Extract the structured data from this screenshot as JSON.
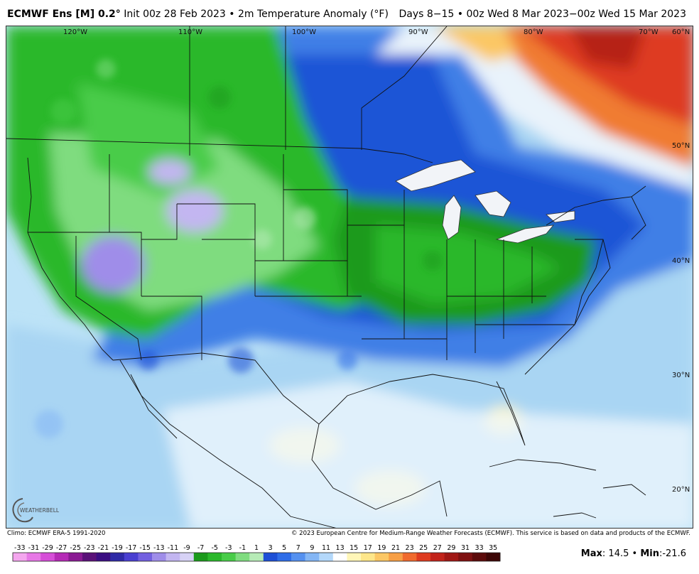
{
  "header": {
    "model": "ECMWF Ens [M] 0.2",
    "degree": "°",
    "init": " Init 00z 28 Feb 2023 • 2m Temperature Anomaly (°F)",
    "valid": "Days 8−15 • 00z Wed 8 Mar 2023−00z Wed 15 Mar 2023"
  },
  "map": {
    "longitude_labels": [
      "120°W",
      "110°W",
      "100°W",
      "90°W",
      "80°W",
      "70°W",
      "60°N"
    ],
    "latitude_labels": [
      "50°N",
      "40°N",
      "30°N",
      "20°N"
    ]
  },
  "logo": {
    "text": "WEATHERBELL"
  },
  "footer": {
    "climo": "Climo: ECMWF ERA-5 1991-2020",
    "copyright": "© 2023 European Centre for Medium-Range Weather Forecasts (ECMWF). This service is based on data and products of the ECMWF."
  },
  "colorbar": {
    "ticks": [
      "-33",
      "-31",
      "-29",
      "-27",
      "-25",
      "-23",
      "-21",
      "-19",
      "-17",
      "-15",
      "-13",
      "-11",
      "-9",
      "-7",
      "-5",
      "-3",
      "-1",
      "1",
      "3",
      "5",
      "7",
      "9",
      "11",
      "13",
      "15",
      "17",
      "19",
      "21",
      "23",
      "25",
      "27",
      "29",
      "31",
      "33",
      "35"
    ],
    "colors": [
      "#f4a6ee",
      "#e778e6",
      "#d64ed8",
      "#b52ab6",
      "#8a1a93",
      "#5a1178",
      "#3b0e82",
      "#2f2aa6",
      "#4a3fd1",
      "#7360e0",
      "#9f8de9",
      "#c3b6f1",
      "#d7d2f5",
      "#1b9a1b",
      "#2bb82b",
      "#48cc48",
      "#7fdc7f",
      "#b7ebb7",
      "#1d4fd6",
      "#2f6de8",
      "#5591f0",
      "#84b6f5",
      "#b4d8fa",
      "#ffffff",
      "#fff6b8",
      "#fde68a",
      "#fbc765",
      "#f79f45",
      "#f06a2e",
      "#de3b20",
      "#c2231a",
      "#a01714",
      "#7e1010",
      "#5c0a0a",
      "#3d0606"
    ],
    "label_max": "Max",
    "max_value": ": 14.5",
    "separator": " • ",
    "label_min": "Min",
    "min_value": ":-21.6"
  }
}
